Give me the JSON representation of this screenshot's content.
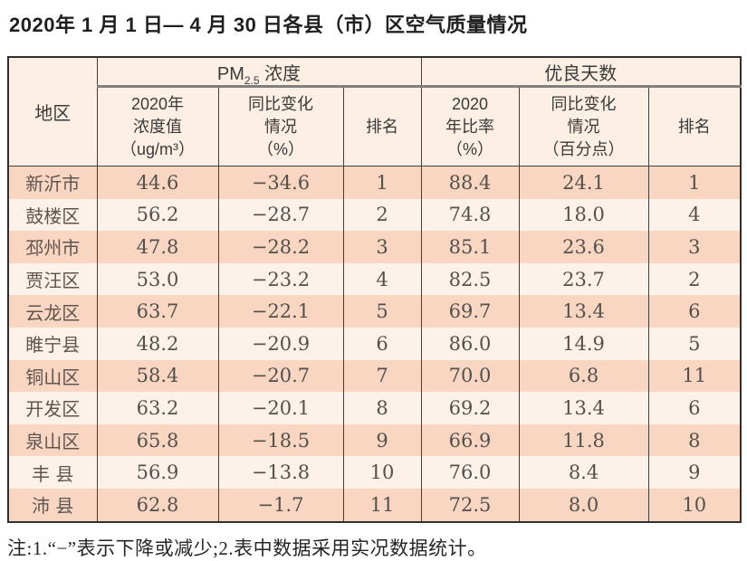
{
  "title": "2020年 1 月 1 日— 4 月 30 日各县（市）区空气质量情况",
  "note": "注:1.“−”表示下降或减少;2.表中数据采用实况数据统计。",
  "chart_data": {
    "type": "table",
    "title": "2020年 1 月 1 日— 4 月 30 日各县（市）区空气质量情况",
    "header": {
      "region": "地区",
      "pm_prefix": "PM",
      "pm_sub": "2.5",
      "pm_suffix": " 浓度",
      "good_days": "优良天数",
      "sub_pm_value": "2020年\n浓度值\n（ug/m³）",
      "sub_pm_change": "同比变化\n情况\n（%）",
      "sub_rank1": "排名",
      "sub_ratio": "2020\n年比率\n（%）",
      "sub_ratio_change": "同比变化\n情况\n（百分点）",
      "sub_rank2": "排名"
    },
    "columns": [
      "地区",
      "2020年浓度值（ug/m³）",
      "同比变化情况（%）",
      "排名",
      "2020年比率（%）",
      "同比变化情况（百分点）",
      "排名"
    ],
    "column_groups": [
      "PM2.5浓度",
      "优良天数"
    ],
    "rows": [
      {
        "region": "新沂市",
        "pm_value": "44.6",
        "pm_change": "−34.6",
        "pm_rank": "1",
        "ratio": "88.4",
        "ratio_change": "24.1",
        "ratio_rank": "1"
      },
      {
        "region": "鼓楼区",
        "pm_value": "56.2",
        "pm_change": "−28.7",
        "pm_rank": "2",
        "ratio": "74.8",
        "ratio_change": "18.0",
        "ratio_rank": "4"
      },
      {
        "region": "邳州市",
        "pm_value": "47.8",
        "pm_change": "−28.2",
        "pm_rank": "3",
        "ratio": "85.1",
        "ratio_change": "23.6",
        "ratio_rank": "3"
      },
      {
        "region": "贾汪区",
        "pm_value": "53.0",
        "pm_change": "−23.2",
        "pm_rank": "4",
        "ratio": "82.5",
        "ratio_change": "23.7",
        "ratio_rank": "2"
      },
      {
        "region": "云龙区",
        "pm_value": "63.7",
        "pm_change": "−22.1",
        "pm_rank": "5",
        "ratio": "69.7",
        "ratio_change": "13.4",
        "ratio_rank": "6"
      },
      {
        "region": "睢宁县",
        "pm_value": "48.2",
        "pm_change": "−20.9",
        "pm_rank": "6",
        "ratio": "86.0",
        "ratio_change": "14.9",
        "ratio_rank": "5"
      },
      {
        "region": "铜山区",
        "pm_value": "58.4",
        "pm_change": "−20.7",
        "pm_rank": "7",
        "ratio": "70.0",
        "ratio_change": "6.8",
        "ratio_rank": "11"
      },
      {
        "region": "开发区",
        "pm_value": "63.2",
        "pm_change": "−20.1",
        "pm_rank": "8",
        "ratio": "69.2",
        "ratio_change": "13.4",
        "ratio_rank": "6"
      },
      {
        "region": "泉山区",
        "pm_value": "65.8",
        "pm_change": "−18.5",
        "pm_rank": "9",
        "ratio": "66.9",
        "ratio_change": "11.8",
        "ratio_rank": "8"
      },
      {
        "region": "丰 县",
        "pm_value": "56.9",
        "pm_change": "−13.8",
        "pm_rank": "10",
        "ratio": "76.0",
        "ratio_change": "8.4",
        "ratio_rank": "9"
      },
      {
        "region": "沛 县",
        "pm_value": "62.8",
        "pm_change": "−1.7",
        "pm_rank": "11",
        "ratio": "72.5",
        "ratio_change": "8.0",
        "ratio_rank": "10"
      }
    ],
    "note": "注:1.“−”表示下降或减少;2.表中数据采用实况数据统计。",
    "colors": {
      "row_odd_bg": "#f9d6c2",
      "row_even_bg": "#fdf2ea",
      "header_bg": "#fdefe4",
      "border": "#3f3f3f",
      "spanner_rule": "#7f7f7f"
    }
  }
}
